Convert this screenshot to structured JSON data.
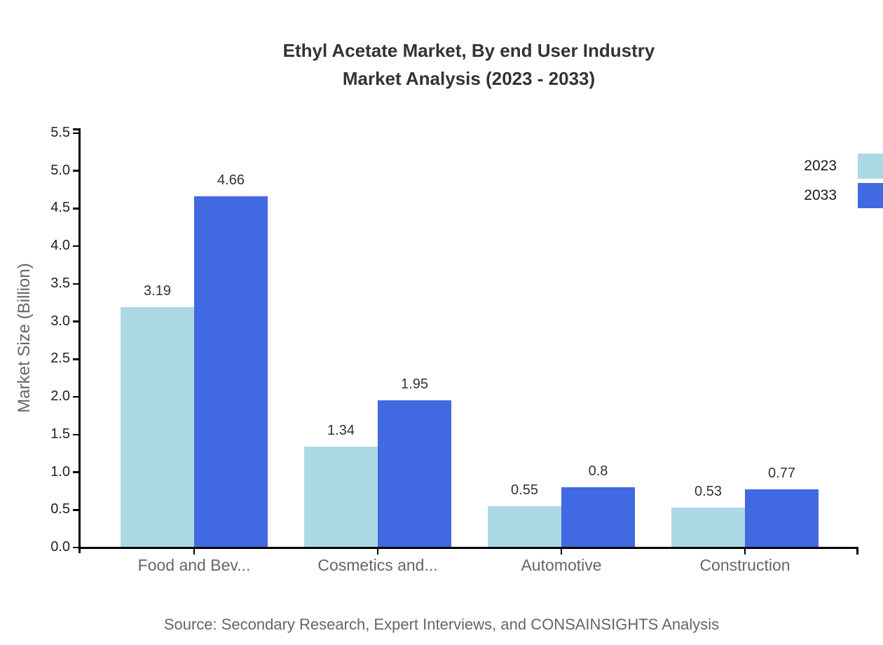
{
  "title": {
    "line1": "Ethyl Acetate Market, By end User Industry",
    "line2": "Market Analysis (2023 - 2033)"
  },
  "source": "Source: Secondary Research, Expert Interviews, and CONSAINSIGHTS Analysis",
  "chart_data": {
    "type": "bar",
    "title": "Ethyl Acetate Market, By end User Industry Market Analysis (2023 - 2033)",
    "categories": [
      "Food and Bev...",
      "Cosmetics and...",
      "Automotive",
      "Construction"
    ],
    "series": [
      {
        "name": "2023",
        "color": "#ADD8E6",
        "values": [
          3.19,
          1.34,
          0.55,
          0.53
        ]
      },
      {
        "name": "2033",
        "color": "#4169E1",
        "values": [
          4.66,
          1.95,
          0.8,
          0.77
        ]
      }
    ],
    "xlabel": "",
    "ylabel": "Market Size (Billion)",
    "ylim": [
      0,
      5.5
    ],
    "ytick_step": 0.5,
    "grid": false,
    "legend_position": "top-right"
  }
}
